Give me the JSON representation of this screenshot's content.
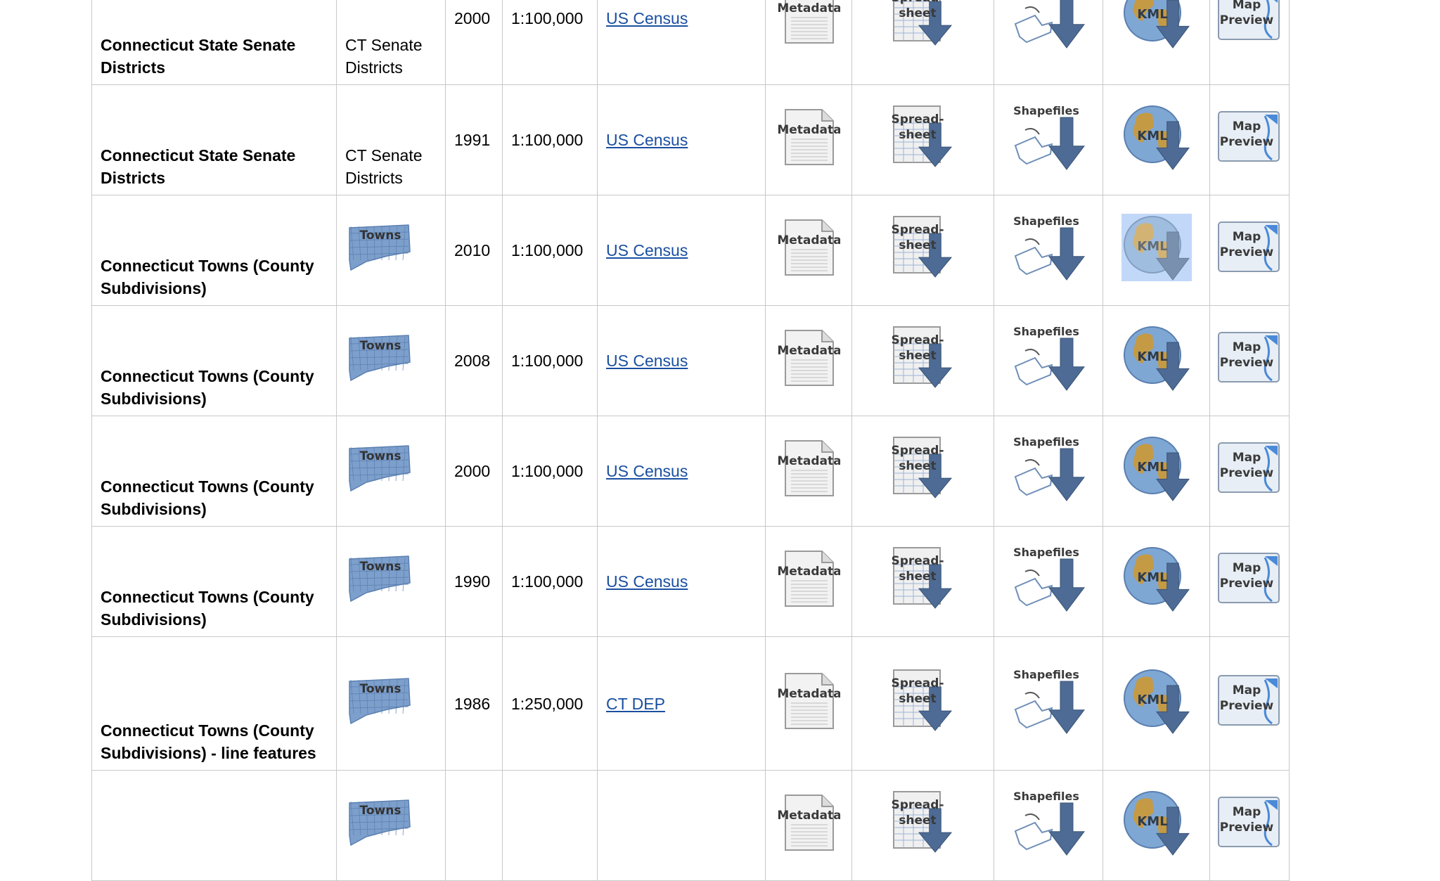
{
  "icon_labels": {
    "metadata": "Metadata",
    "spreadsheet_line1": "Spread-",
    "spreadsheet_line2": "sheet",
    "shapefiles": "Shapefiles",
    "kml": "KML",
    "preview_line1": "Map",
    "preview_line2": "Preview",
    "thumb_towns": "Towns"
  },
  "rows": [
    {
      "name": "Connecticut State Senate Districts",
      "thumb_text": "CT Senate Districts",
      "thumb_icon": false,
      "year": "2000",
      "scale": "1:100,000",
      "source": "US Census",
      "kml_selected": false
    },
    {
      "name": "Connecticut State Senate Districts",
      "thumb_text": "CT Senate Districts",
      "thumb_icon": false,
      "year": "1991",
      "scale": "1:100,000",
      "source": "US Census",
      "kml_selected": false
    },
    {
      "name": "Connecticut Towns (County Subdivisions)",
      "thumb_text": "",
      "thumb_icon": true,
      "year": "2010",
      "scale": "1:100,000",
      "source": "US Census",
      "kml_selected": true
    },
    {
      "name": "Connecticut Towns (County Subdivisions)",
      "thumb_text": "",
      "thumb_icon": true,
      "year": "2008",
      "scale": "1:100,000",
      "source": "US Census",
      "kml_selected": false
    },
    {
      "name": "Connecticut Towns (County Subdivisions)",
      "thumb_text": "",
      "thumb_icon": true,
      "year": "2000",
      "scale": "1:100,000",
      "source": "US Census",
      "kml_selected": false
    },
    {
      "name": "Connecticut Towns (County Subdivisions)",
      "thumb_text": "",
      "thumb_icon": true,
      "year": "1990",
      "scale": "1:100,000",
      "source": "US Census",
      "kml_selected": false
    },
    {
      "name": "Connecticut Towns (County Subdivisions) - line features",
      "thumb_text": "",
      "thumb_icon": true,
      "year": "1986",
      "scale": "1:250,000",
      "source": "CT DEP",
      "kml_selected": false
    },
    {
      "name": "",
      "thumb_text": "",
      "thumb_icon": true,
      "year": "",
      "scale": "",
      "source": "",
      "kml_selected": false
    }
  ],
  "colors": {
    "link": "#1a4fa0",
    "arrow": "#4d6b94",
    "globe_ocean": "#7fa7d4",
    "globe_land": "#c49a45",
    "town_map": "#7d9fcc",
    "selection": "#4a8ceb",
    "border": "#c8c8c8"
  }
}
